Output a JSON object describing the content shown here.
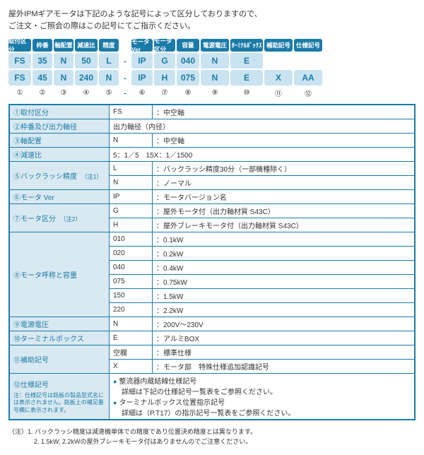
{
  "intro": {
    "line1": "屋外IPMギアモータは下記のような記号によって区分しておりますので、",
    "line2": "ご注文・ご照会の際はこの記号にてご指示ください。"
  },
  "code_columns": [
    {
      "w": 32,
      "header": "取付区分",
      "v1": "FS",
      "v2": "FS",
      "num": "①"
    },
    {
      "w": 28,
      "header": "枠番",
      "v1": "35",
      "v2": "45",
      "num": "②"
    },
    {
      "w": 28,
      "header": "軸配置",
      "v1": "N",
      "v2": "N",
      "num": "③"
    },
    {
      "w": 32,
      "header": "減速比",
      "v1": "50",
      "v2": "240",
      "num": "④"
    },
    {
      "w": 28,
      "header": "精度",
      "v1": "L",
      "v2": "N",
      "num": "⑤"
    },
    {
      "w": 14,
      "header": "",
      "v1": "-",
      "v2": "-",
      "dash": true
    },
    {
      "w": 30,
      "header": "モータVer",
      "v1": "IP",
      "v2": "IP",
      "num": "⑥"
    },
    {
      "w": 30,
      "header": "モータ区分",
      "v1": "G",
      "v2": "H",
      "num": "⑦"
    },
    {
      "w": 32,
      "header": "容量",
      "v1": "040",
      "v2": "075",
      "num": "⑧"
    },
    {
      "w": 40,
      "header": "電源電圧",
      "v1": "N",
      "v2": "N",
      "num": "⑨"
    },
    {
      "w": 46,
      "header": "ﾀｰﾐﾅﾙﾎﾞｯｸｽ",
      "v1": "E",
      "v2": "E",
      "num": "⑩"
    },
    {
      "w": 40,
      "header": "補助記号",
      "v1": "",
      "v2": "X",
      "num": "⑪"
    },
    {
      "w": 40,
      "header": "仕様記号",
      "v1": "",
      "v2": "AA",
      "num": "⑫"
    }
  ],
  "spec_rows": [
    {
      "label": "①取付区分",
      "rows": [
        [
          "FS",
          "：中空軸"
        ]
      ]
    },
    {
      "label": "②枠番及び出力軸径",
      "rows": [
        [
          "",
          "出力軸径（内径）"
        ]
      ],
      "nocode": true
    },
    {
      "label": "③軸配置",
      "rows": [
        [
          "N",
          "：中空軸"
        ]
      ]
    },
    {
      "label": "④減速比",
      "rows": [
        [
          "",
          "5：1／5　15X：1／1500"
        ]
      ],
      "nocode": true
    },
    {
      "label": "⑤バックラッシ精度",
      "note": "（注1）",
      "rows": [
        [
          "L",
          "：バックラッシ精度30分（一部機種除く）"
        ],
        [
          "N",
          "：ノーマル"
        ]
      ]
    },
    {
      "label": "⑥モータ Ver",
      "rows": [
        [
          "IP",
          "：モータバージョン名"
        ]
      ]
    },
    {
      "label": "⑦モータ区分",
      "note": "（注2）",
      "rows": [
        [
          "G",
          "：屋外モータ付（出力軸材質 S43C）"
        ],
        [
          "H",
          "：屋外ブレーキモータ付（出力軸材質 S43C）"
        ]
      ]
    },
    {
      "label": "⑧モータ呼称と容量",
      "rows": [
        [
          "010",
          "：0.1kW"
        ],
        [
          "020",
          "：0.2kW"
        ],
        [
          "040",
          "：0.4kW"
        ],
        [
          "075",
          "：0.75kW"
        ],
        [
          "150",
          "：1.5kW"
        ],
        [
          "220",
          "：2.2kW"
        ]
      ]
    },
    {
      "label": "⑨電源電圧",
      "rows": [
        [
          "N",
          "：200V～230V"
        ]
      ]
    },
    {
      "label": "⑩ターミナルボックス",
      "rows": [
        [
          "E",
          "：アルミBOX"
        ]
      ]
    },
    {
      "label": "⑪補助記号",
      "rows": [
        [
          "空欄",
          "：標準仕様"
        ],
        [
          "X",
          "：モータ部　特殊仕様追加認識記号"
        ]
      ]
    },
    {
      "label": "⑫仕様記号",
      "label_note": "注：仕様記号は銘板の製品型式名には表示されません。銘板上の補足番号欄に表示されます。",
      "bullets": [
        "整流器内蔵結線仕様記号",
        "詳細は下記の仕様記号一覧表をご参照ください。",
        "ターミナルボックス位置指示記号",
        "詳細は（P.T17）の指示記号一覧表をご参照ください。"
      ]
    }
  ],
  "footnotes": {
    "n1": "（注）1. バックラッシ精度は減速機単体での精度であり位置決め精度とは異なります。",
    "n2": "　　　　2. 1.5kW, 2.2kWの屋外ブレーキモータ付はありませんのでご注意ください。"
  }
}
